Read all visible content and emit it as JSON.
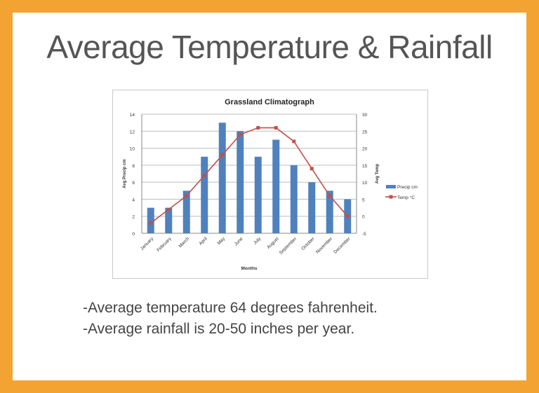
{
  "slide": {
    "title": "Average Temperature & Rainfall",
    "bullets": [
      "-Average temperature 64 degrees fahrenheit.",
      "-Average rainfall is 20-50 inches per year."
    ]
  },
  "colors": {
    "border": "#f2a332",
    "bar": "#4f81bd",
    "line": "#c0504d"
  },
  "chart_data": {
    "type": "bar+line",
    "title": "Grassland Climatograph",
    "xlabel": "Months",
    "ylabel": "Avg Precip cm",
    "y2label": "Avg Temp",
    "categories": [
      "January",
      "February",
      "March",
      "April",
      "May",
      "June",
      "July",
      "August",
      "September",
      "October",
      "November",
      "December"
    ],
    "ylim": [
      0,
      14
    ],
    "yticks": [
      0,
      2,
      4,
      6,
      8,
      10,
      12,
      14
    ],
    "y2lim": [
      -5,
      30
    ],
    "y2ticks": [
      -5,
      0,
      5,
      10,
      15,
      20,
      25,
      30
    ],
    "grid": true,
    "legend_position": "right",
    "series": [
      {
        "name": "Precip cm",
        "type": "bar",
        "axis": "left",
        "values": [
          3,
          3,
          5,
          9,
          13,
          12,
          9,
          11,
          8,
          6,
          5,
          4
        ]
      },
      {
        "name": "Temp  °C",
        "type": "line",
        "axis": "right",
        "values": [
          -2,
          2,
          6,
          12,
          18,
          24,
          26,
          26,
          22,
          14,
          6,
          0
        ]
      }
    ]
  }
}
